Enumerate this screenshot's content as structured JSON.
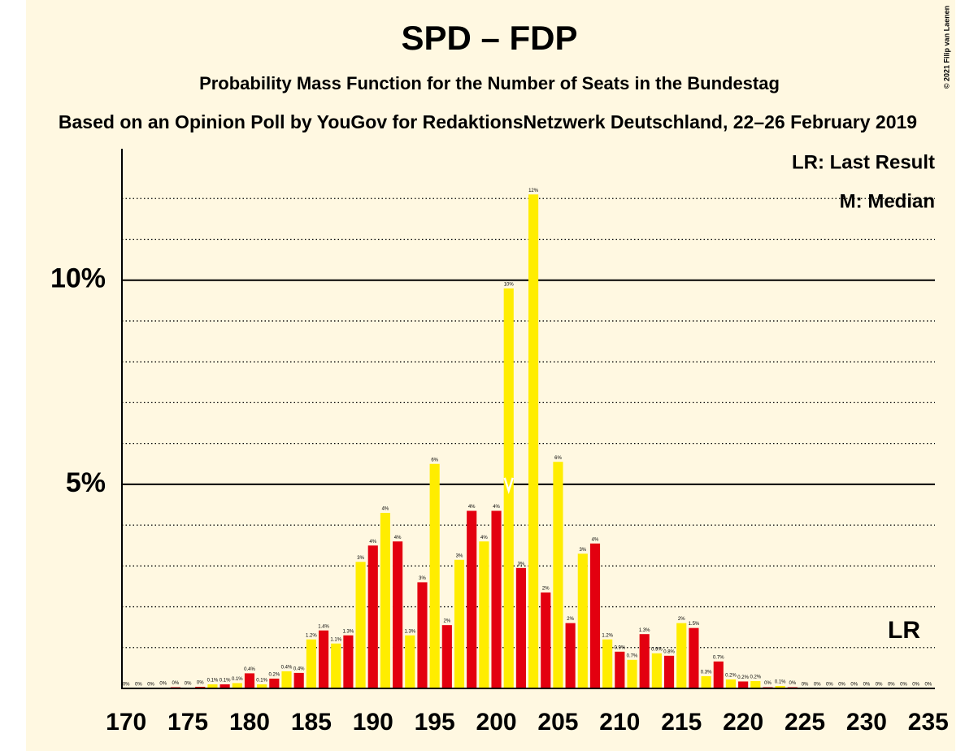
{
  "chart_data": {
    "type": "bar",
    "title": "SPD – FDP",
    "subtitle": "Probability Mass Function for the Number of Seats in the Bundestag",
    "source": "Based on an Opinion Poll by YouGov for RedaktionsNetzwerk Deutschland, 22–26 February 2019",
    "copyright": "© 2021 Filip van Laenen",
    "legend_lr": "LR: Last Result",
    "legend_median": "M: Median",
    "lr_label": "LR",
    "median": 201,
    "x": [
      170,
      171,
      172,
      173,
      174,
      175,
      176,
      177,
      178,
      179,
      180,
      181,
      182,
      183,
      184,
      185,
      186,
      187,
      188,
      189,
      190,
      191,
      192,
      193,
      194,
      195,
      196,
      197,
      198,
      199,
      200,
      201,
      202,
      203,
      204,
      205,
      206,
      207,
      208,
      209,
      210,
      211,
      212,
      213,
      214,
      215,
      216,
      217,
      218,
      219,
      220,
      221,
      222,
      223,
      224,
      225,
      226,
      227,
      228,
      229,
      230,
      231,
      232,
      233,
      234,
      235
    ],
    "values": [
      0,
      0,
      0,
      0.02,
      0.03,
      0.02,
      0.04,
      0.1,
      0.1,
      0.13,
      0.37,
      0.1,
      0.24,
      0.42,
      0.38,
      1.2,
      1.42,
      1.1,
      1.3,
      3.1,
      3.5,
      4.3,
      3.6,
      1.3,
      2.6,
      5.5,
      1.55,
      3.15,
      4.35,
      3.6,
      4.35,
      9.8,
      2.95,
      12.1,
      2.35,
      5.55,
      1.6,
      3.3,
      3.55,
      1.2,
      0.9,
      0.7,
      1.33,
      0.86,
      0.8,
      1.6,
      1.48,
      0.3,
      0.66,
      0.22,
      0.17,
      0.18,
      0.03,
      0.06,
      0.03,
      0,
      0,
      0,
      0,
      0,
      0,
      0,
      0,
      0,
      0,
      0
    ],
    "value_labels": [
      "0%",
      "0%",
      "0%",
      "0%",
      "0%",
      "0%",
      "0%",
      "0.1%",
      "0.1%",
      "0.1%",
      "0.4%",
      "0.1%",
      "0.2%",
      "0.4%",
      "0.4%",
      "1.2%",
      "1.4%",
      "1.1%",
      "1.3%",
      "3%",
      "4%",
      "4%",
      "4%",
      "1.3%",
      "3%",
      "6%",
      "2%",
      "3%",
      "4%",
      "4%",
      "4%",
      "10%",
      "3%",
      "12%",
      "2%",
      "6%",
      "2%",
      "3%",
      "4%",
      "1.2%",
      "0.9%",
      "0.7%",
      "1.3%",
      "0.9%",
      "0.8%",
      "2%",
      "1.5%",
      "0.3%",
      "0.7%",
      "0.2%",
      "0.2%",
      "0.2%",
      "0%",
      "0.1%",
      "0%",
      "0%",
      "0%",
      "0%",
      "0%",
      "0%",
      "0%",
      "0%",
      "0%",
      "0%",
      "0%",
      "0%"
    ],
    "colors": [
      "#e3000f",
      "#ffed00",
      "#e3000f",
      "#ffed00",
      "#e3000f",
      "#ffed00",
      "#e3000f",
      "#ffed00",
      "#e3000f",
      "#ffed00",
      "#e3000f",
      "#ffed00",
      "#e3000f",
      "#ffed00",
      "#e3000f",
      "#ffed00",
      "#e3000f",
      "#ffed00",
      "#e3000f",
      "#ffed00",
      "#e3000f",
      "#ffed00",
      "#e3000f",
      "#ffed00",
      "#e3000f",
      "#ffed00",
      "#e3000f",
      "#ffed00",
      "#e3000f",
      "#ffed00",
      "#e3000f",
      "#ffed00",
      "#e3000f",
      "#ffed00",
      "#e3000f",
      "#ffed00",
      "#e3000f",
      "#ffed00",
      "#e3000f",
      "#ffed00",
      "#e3000f",
      "#ffed00",
      "#e3000f",
      "#ffed00",
      "#e3000f",
      "#ffed00",
      "#e3000f",
      "#ffed00",
      "#e3000f",
      "#ffed00",
      "#e3000f",
      "#ffed00",
      "#e3000f",
      "#ffed00",
      "#e3000f",
      "#ffed00",
      "#e3000f",
      "#ffed00",
      "#e3000f",
      "#ffed00",
      "#e3000f",
      "#ffed00",
      "#e3000f",
      "#ffed00",
      "#e3000f",
      "#ffed00"
    ],
    "xlim": [
      169,
      236
    ],
    "xticks": [
      170,
      175,
      180,
      185,
      190,
      195,
      200,
      205,
      210,
      215,
      220,
      225,
      230,
      235
    ],
    "ylim": [
      0,
      13.2
    ],
    "yticks": [
      {
        "value": 5,
        "label": "5%"
      },
      {
        "value": 10,
        "label": "10%"
      }
    ],
    "minor_yticks": [
      1,
      2,
      3,
      4,
      6,
      7,
      8,
      9,
      11,
      12
    ],
    "grid": true
  }
}
